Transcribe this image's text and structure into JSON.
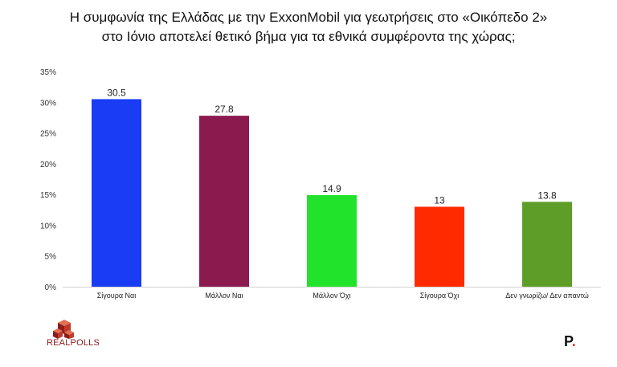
{
  "title_lines": [
    "Η συμφωνία της Ελλάδας με την ExxonMobil για γεωτρήσεις στο «Οικόπεδο 2»",
    "στο Ιόνιο αποτελεί θετικό βήμα για τα εθνικά συμφέροντα της χώρας;"
  ],
  "chart_data": {
    "type": "bar",
    "title": "Η συμφωνία της Ελλάδας με την ExxonMobil για γεωτρήσεις στο «Οικόπεδο 2» στο Ιόνιο αποτελεί θετικό βήμα για τα εθνικά συμφέροντα της χώρας;",
    "categories": [
      "Σίγουρα Ναι",
      "Μάλλον Ναι",
      "Μάλλον Όχι",
      "Σίγουρα Όχι",
      "Δεν γνωρίζω/ Δεν απαντώ"
    ],
    "values": [
      30.5,
      27.8,
      14.9,
      13,
      13.8
    ],
    "data_labels": [
      "30.5",
      "27.8",
      "14.9",
      "13",
      "13.8"
    ],
    "colors": [
      "#1a3cf5",
      "#8b1a4f",
      "#22e32b",
      "#ff2a00",
      "#5f9d29"
    ],
    "ylim": [
      0,
      35
    ],
    "yticks": [
      0,
      5,
      10,
      15,
      20,
      25,
      30,
      35
    ],
    "ytick_labels": [
      "0%",
      "5%",
      "10%",
      "15%",
      "20%",
      "25%",
      "30%",
      "35%"
    ],
    "grid": false,
    "legend": "none"
  },
  "branding": {
    "logo_text": "REALPOLLS",
    "logo_colors": [
      "#c0392b",
      "#8e1c1c",
      "#e07050"
    ],
    "source_mark": "P",
    "source_dot": "."
  }
}
